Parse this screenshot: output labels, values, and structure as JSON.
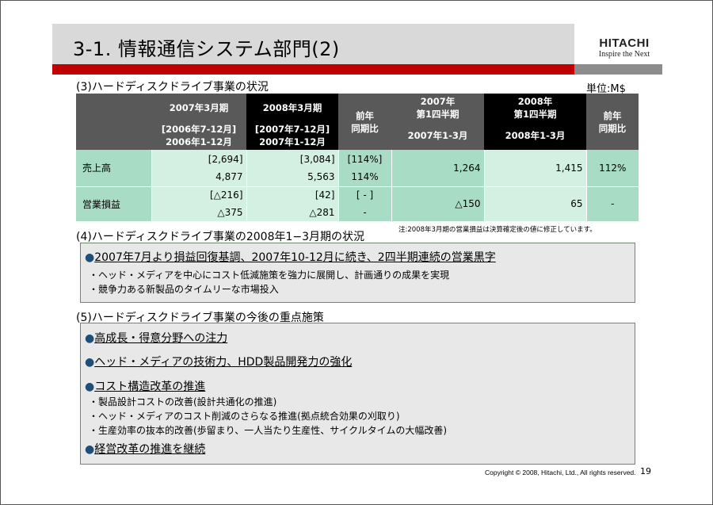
{
  "header": {
    "title": "3-1. 情報通信システム部門(2)",
    "logo_main": "HITACHI",
    "logo_sub": "Inspire the Next"
  },
  "section3": {
    "title": "(3)ハードディスクドライブ事業の状況",
    "unit": "単位:M$"
  },
  "table": {
    "headers": {
      "col1_top": "2007年3月期",
      "col1_bottom_1": "[2006年7-12月]",
      "col1_bottom_2": "2006年1-12月",
      "col2_top": "2008年3月期",
      "col2_bottom_1": "[2007年7-12月]",
      "col2_bottom_2": "2007年1-12月",
      "col3_1": "前年",
      "col3_2": "同期比",
      "col4_top_1": "2007年",
      "col4_top_2": "第1四半期",
      "col4_bottom": "2007年1-3月",
      "col5_top_1": "2008年",
      "col5_top_2": "第1四半期",
      "col5_bottom": "2008年1-3月",
      "col6_1": "前年",
      "col6_2": "同期比"
    },
    "rows": [
      {
        "label": "売上高",
        "c1_top": "[2,694]",
        "c1_bottom": "4,877",
        "c2_top": "[3,084]",
        "c2_bottom": "5,563",
        "c3_top": "[114%]",
        "c3_bottom": "114%",
        "c4": "1,264",
        "c5": "1,415",
        "c6": "112%"
      },
      {
        "label": "営業損益",
        "c1_top": "[△216]",
        "c1_bottom": "△375",
        "c2_top": "[42]",
        "c2_bottom": "△281",
        "c3_top": "[ - ]",
        "c3_bottom": "-",
        "c4": "△150",
        "c5": "65",
        "c6": "-"
      }
    ],
    "note": "注:2008年3月期の営業損益は決算確定後の値に修正しています。"
  },
  "section4": {
    "title": "(4)ハードディスクドライブ事業の2008年1−3月期の状況",
    "bullet": "2007年7月より損益回復基調、2007年10-12月に続き、2四半期連続の営業黒字",
    "subs": [
      "・ヘッド・メディアを中心にコスト低減施策を強力に展開し、計画通りの成果を実現",
      "・競争力ある新製品のタイムリーな市場投入"
    ]
  },
  "section5": {
    "title": "(5)ハードディスクドライブ事業の今後の重点施策",
    "bullet1": "高成長・得意分野への注力",
    "bullet2": "ヘッド・メディアの技術力、HDD製品開発力の強化",
    "bullet3": "コスト構造改革の推進",
    "subs": [
      "・製品設計コストの改善(設計共通化の推進)",
      "・ヘッド・メディアのコスト削減のさらなる推進(拠点統合効果の刈取り)",
      "・生産効率の抜本的改善(歩留まり、一人当たり生産性、サイクルタイムの大幅改善)"
    ],
    "bullet4": "経営改革の推進を継続"
  },
  "footer": {
    "copyright": "Copyright © 2008, Hitachi, Ltd., All rights reserved.",
    "page": "19"
  },
  "colors": {
    "accent_red": "#c00000",
    "table_green_dark": "#a8dcc5",
    "table_green_light": "#d4f0e3",
    "bullet_blue": "#1f4e79"
  }
}
